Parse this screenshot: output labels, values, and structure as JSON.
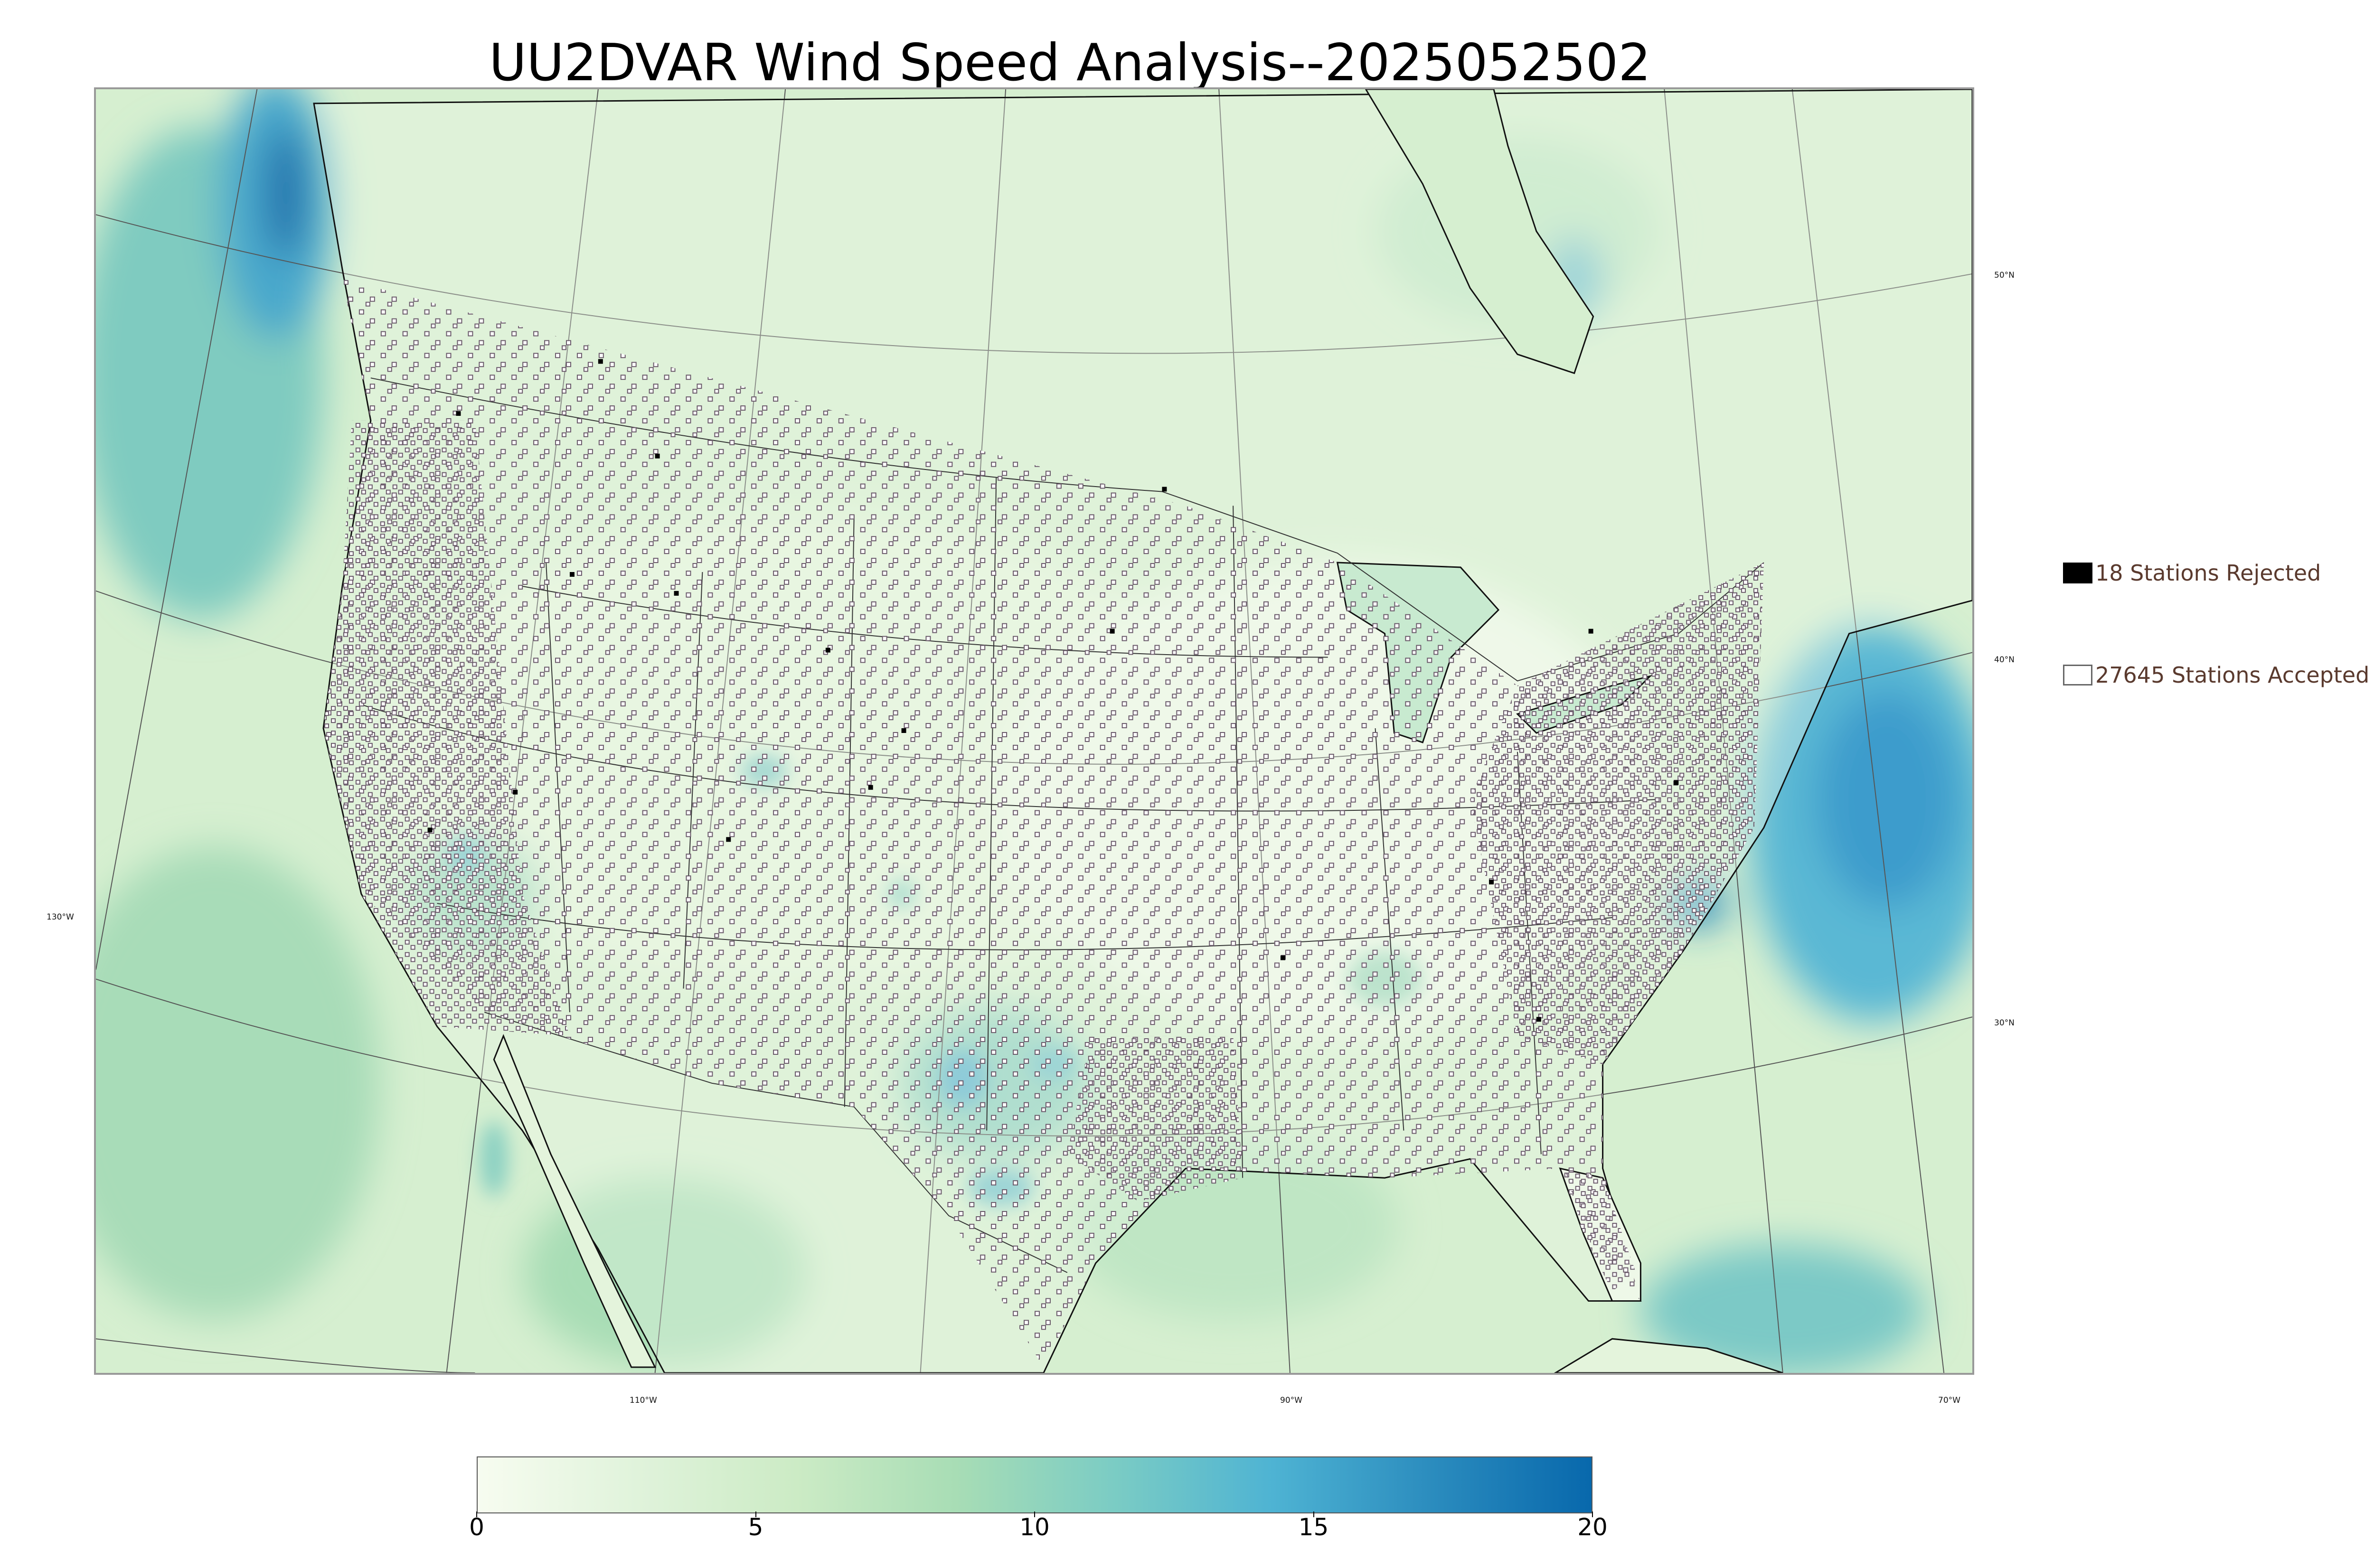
{
  "title": "UU2DVAR Wind Speed Analysis--2025052502",
  "legend": {
    "rejected": {
      "label": "18 Stations Rejected",
      "color": "#000000"
    },
    "accepted": {
      "label": "27645 Stations Accepted",
      "color": "#ffffff"
    }
  },
  "graticule": {
    "lat_labels": [
      "50°N",
      "40°N",
      "30°N"
    ],
    "lon_labels": [
      "130°W",
      "110°W",
      "90°W",
      "70°W"
    ]
  },
  "colorbar": {
    "ticks": [
      "0",
      "5",
      "10",
      "15",
      "20"
    ],
    "range": [
      0,
      20
    ],
    "colors": [
      "#f7fcf0",
      "#e0f3db",
      "#ccebc5",
      "#a8ddb5",
      "#7bccc4",
      "#4eb3d3",
      "#2b8cbe",
      "#0868ac"
    ]
  }
}
